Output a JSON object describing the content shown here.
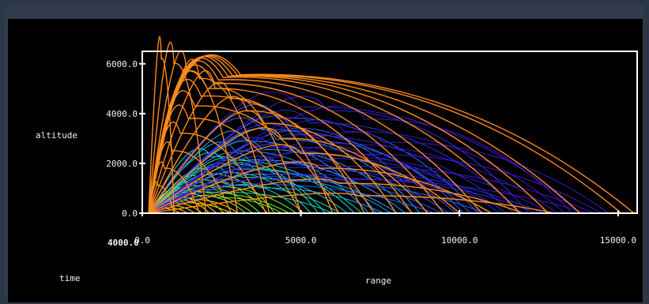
{
  "chart_data": {
    "type": "line",
    "title": "",
    "xlabel": "range",
    "ylabel": "altitude",
    "colorlabel": "time",
    "xlim": [
      0,
      15600
    ],
    "ylim": [
      0,
      6500
    ],
    "x_ticks": [
      "0.0",
      "5000.0",
      "10000.0",
      "15000.0"
    ],
    "y_ticks": [
      "0.0",
      "2000.0",
      "4000.0",
      "6000.0"
    ],
    "overlay_tick": "4000.0",
    "grid": false,
    "legend": "none",
    "colors": {
      "frame": "#ffffff",
      "outer_envelope": "#ff8a1c",
      "colormap": [
        "#ffe800",
        "#7cff2a",
        "#18e0c8",
        "#1fa0ff",
        "#2a5cff",
        "#2a2ae0",
        "#4018c0",
        "#ff8a1c"
      ]
    },
    "trajectory_families": [
      {
        "name": "",
        "landings": [
          1000,
          1800,
          2800,
          3900,
          5000,
          6200,
          7300,
          8500,
          9500,
          10700,
          11900,
          12800,
          13800,
          15100,
          15500
        ],
        "launch_x": 200,
        "apex_altitude": [
          1100,
          1800,
          2500,
          3200,
          3800,
          4300,
          4700,
          5000,
          5200,
          5350,
          5450,
          5500,
          5520,
          5540,
          5560
        ],
        "apex_range": [
          500,
          700,
          950,
          1200,
          1450,
          1650,
          1850,
          2050,
          2250,
          2400,
          2550,
          2700,
          2850,
          3000,
          3100
        ]
      },
      {
        "name": "",
        "landings": [
          1000,
          2000,
          3000,
          4000,
          5000,
          6000,
          7000,
          8000,
          9000,
          10000,
          11000,
          12000,
          13000
        ],
        "launch_x": 200,
        "apex_altitude": [
          6200,
          6000,
          5700,
          5400,
          5000,
          4600,
          4100,
          3600,
          3000,
          2400,
          1800,
          1200,
          700
        ],
        "apex_range": [
          600,
          1000,
          1400,
          1800,
          2300,
          2800,
          3300,
          3800,
          4400,
          5000,
          5600,
          6200,
          6800
        ]
      }
    ]
  }
}
